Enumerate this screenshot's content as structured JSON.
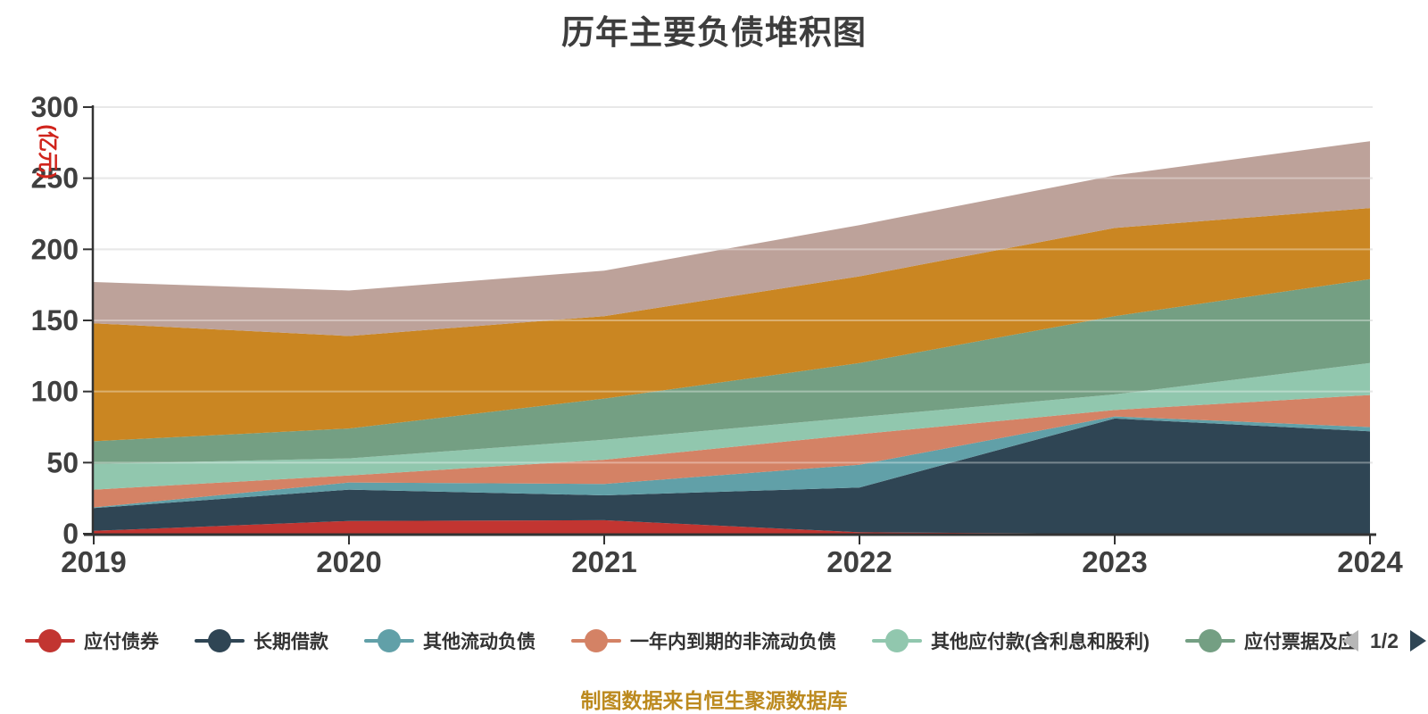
{
  "title": "历年主要负债堆积图",
  "y_axis": {
    "unit": "(亿元)",
    "unit_color": "#d0241c",
    "ticks": [
      0,
      50,
      100,
      150,
      200,
      250,
      300
    ]
  },
  "x_axis": {
    "ticks": [
      "2019",
      "2020",
      "2021",
      "2022",
      "2023",
      "2024"
    ]
  },
  "legend": {
    "page_indicator": "1/2",
    "items": [
      {
        "label": "应付债券",
        "color": "#c23531"
      },
      {
        "label": "长期借款",
        "color": "#2f4554"
      },
      {
        "label": "其他流动负债",
        "color": "#61a0a8"
      },
      {
        "label": "一年内到期的非流动负债",
        "color": "#d48265"
      },
      {
        "label": "其他应付款(含利息和股利)",
        "color": "#91c7ae"
      },
      {
        "label": "应付票据及应",
        "color": "#749f83"
      }
    ]
  },
  "source_note": "制图数据来自恒生聚源数据库",
  "chart_data": {
    "type": "area",
    "stacked": true,
    "title": "历年主要负债堆积图",
    "xlabel": "",
    "ylabel": "(亿元)",
    "ylim": [
      0,
      300
    ],
    "grid": true,
    "legend_position": "bottom",
    "x": [
      2019,
      2020,
      2021,
      2022,
      2023,
      2024
    ],
    "series": [
      {
        "name": "应付债券",
        "color": "#c23531",
        "legend_page": 1,
        "values": [
          2,
          9,
          9.5,
          1,
          0,
          0
        ]
      },
      {
        "name": "长期借款",
        "color": "#2f4554",
        "legend_page": 1,
        "values": [
          16,
          22,
          17.5,
          31.5,
          81,
          72
        ]
      },
      {
        "name": "其他流动负债",
        "color": "#61a0a8",
        "legend_page": 1,
        "values": [
          0.5,
          5,
          8,
          16,
          1.5,
          3
        ]
      },
      {
        "name": "一年内到期的非流动负债",
        "color": "#d48265",
        "legend_page": 1,
        "values": [
          12.5,
          5,
          17,
          21.5,
          4.5,
          22.5
        ]
      },
      {
        "name": "其他应付款(含利息和股利)",
        "color": "#91c7ae",
        "legend_page": 1,
        "values": [
          18,
          12,
          14,
          12,
          11,
          22.5
        ]
      },
      {
        "name": "应付票据及应",
        "color": "#749f83",
        "legend_page": 1,
        "values": [
          16,
          21,
          29,
          38,
          55,
          59
        ]
      },
      {
        "name": "",
        "color": "#ca8622",
        "legend_page": 2,
        "values": [
          83,
          65,
          58,
          61,
          62,
          50
        ]
      },
      {
        "name": "",
        "color": "#bda29a",
        "legend_page": 2,
        "values": [
          29,
          32,
          32,
          36,
          37,
          47
        ]
      }
    ],
    "cumulative_totals": [
      177,
      171,
      185,
      217,
      252,
      276
    ]
  }
}
